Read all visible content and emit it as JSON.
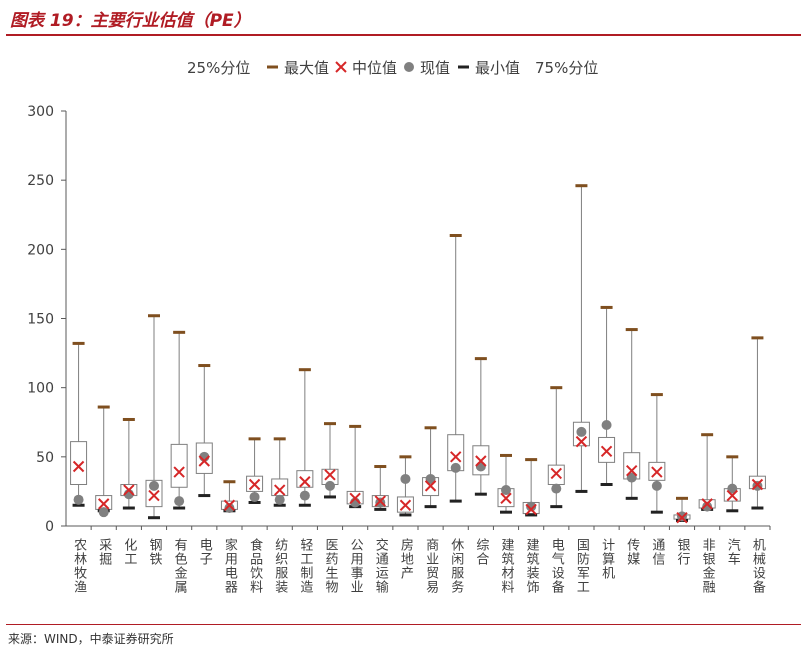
{
  "figure": {
    "title": "图表 19：主要行业估值（PE）",
    "source": "来源：WIND，中泰证券研究所"
  },
  "colors": {
    "accent": "#b01c24",
    "box": "#7f7f7f",
    "median": "#d62728",
    "current": "#808080",
    "whisker_cap": "#7f4f1f",
    "axis": "#595959"
  },
  "chart_data": {
    "type": "box",
    "ylim": [
      0,
      300
    ],
    "yticks": [
      0,
      50,
      100,
      150,
      200,
      250,
      300
    ],
    "legend_position": "top",
    "legend": [
      {
        "label": "25%分位",
        "marker": "none"
      },
      {
        "label": "最大值",
        "marker": "dash-brown"
      },
      {
        "label": "中位值",
        "marker": "x-red"
      },
      {
        "label": "现值",
        "marker": "dot-gray"
      },
      {
        "label": "最小值",
        "marker": "dash-black"
      },
      {
        "label": "75%分位",
        "marker": "none"
      }
    ],
    "categories": [
      "农林牧渔",
      "采掘",
      "化工",
      "钢铁",
      "有色金属",
      "电子",
      "家用电器",
      "食品饮料",
      "纺织服装",
      "轻工制造",
      "医药生物",
      "公用事业",
      "交通运输",
      "房地产",
      "商业贸易",
      "休闲服务",
      "综合",
      "建筑材料",
      "建筑装饰",
      "电气设备",
      "国防军工",
      "计算机",
      "传媒",
      "通信",
      "银行",
      "非银金融",
      "汽车",
      "机械设备"
    ],
    "max": [
      132,
      86,
      77,
      152,
      140,
      116,
      32,
      63,
      63,
      113,
      74,
      72,
      43,
      50,
      71,
      210,
      121,
      51,
      48,
      100,
      246,
      158,
      142,
      95,
      20,
      66,
      50,
      136
    ],
    "q75": [
      61,
      22,
      30,
      33,
      59,
      60,
      18,
      36,
      34,
      40,
      41,
      25,
      22,
      21,
      35,
      66,
      58,
      27,
      17,
      44,
      75,
      64,
      53,
      46,
      8,
      19,
      27,
      36
    ],
    "median": [
      43,
      16,
      26,
      22,
      39,
      47,
      15,
      30,
      26,
      32,
      37,
      20,
      18,
      15,
      29,
      50,
      47,
      20,
      12,
      38,
      61,
      54,
      40,
      39,
      6,
      16,
      22,
      30
    ],
    "q25": [
      30,
      12,
      22,
      14,
      28,
      38,
      12,
      25,
      22,
      28,
      30,
      16,
      14,
      10,
      22,
      40,
      37,
      14,
      9,
      30,
      58,
      46,
      34,
      33,
      5,
      13,
      18,
      27
    ],
    "min": [
      15,
      11,
      13,
      6,
      13,
      22,
      11,
      17,
      15,
      15,
      21,
      14,
      12,
      8,
      14,
      18,
      23,
      10,
      8,
      14,
      25,
      30,
      20,
      10,
      4,
      12,
      11,
      13
    ],
    "current": [
      19,
      10,
      23,
      29,
      18,
      50,
      13,
      21,
      19,
      22,
      29,
      17,
      17,
      34,
      34,
      42,
      43,
      26,
      14,
      27,
      68,
      73,
      35,
      29,
      7,
      14,
      27,
      29
    ]
  }
}
